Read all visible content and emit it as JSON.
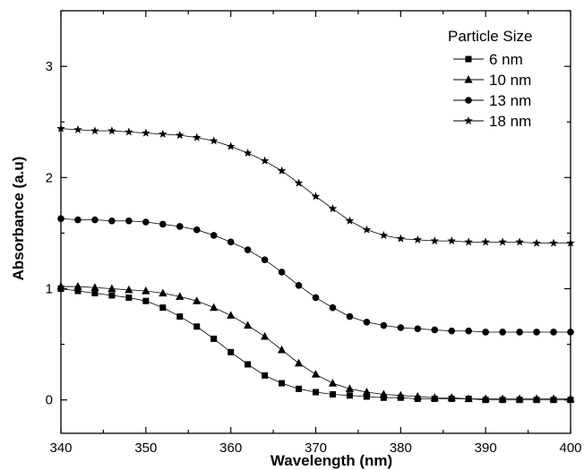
{
  "chart_data": {
    "type": "line",
    "title": "",
    "xlabel": "Wavelength (nm)",
    "ylabel": "Absorbance (a.u)",
    "xlim": [
      340,
      400
    ],
    "ylim": [
      -0.3,
      3.5
    ],
    "xticks": [
      340,
      350,
      360,
      370,
      380,
      390,
      400
    ],
    "yticks": [
      0,
      1,
      2,
      3
    ],
    "grid": false,
    "legend_title": "Particle Size",
    "legend_position": "top-right",
    "x": [
      340,
      342,
      344,
      346,
      348,
      350,
      352,
      354,
      356,
      358,
      360,
      362,
      364,
      366,
      368,
      370,
      372,
      374,
      376,
      378,
      380,
      382,
      384,
      386,
      388,
      390,
      392,
      394,
      396,
      398,
      400
    ],
    "series": [
      {
        "name": "6 nm",
        "marker": "square",
        "values": [
          1.0,
          0.98,
          0.96,
          0.94,
          0.92,
          0.89,
          0.83,
          0.75,
          0.66,
          0.55,
          0.43,
          0.32,
          0.22,
          0.15,
          0.1,
          0.07,
          0.05,
          0.04,
          0.03,
          0.02,
          0.02,
          0.01,
          0.01,
          0.01,
          0.01,
          0.0,
          0.0,
          0.0,
          0.0,
          0.0,
          0.0
        ]
      },
      {
        "name": "10 nm",
        "marker": "triangle",
        "values": [
          1.02,
          1.02,
          1.01,
          1.0,
          0.99,
          0.98,
          0.96,
          0.93,
          0.89,
          0.83,
          0.76,
          0.67,
          0.57,
          0.45,
          0.33,
          0.23,
          0.15,
          0.1,
          0.07,
          0.05,
          0.04,
          0.03,
          0.02,
          0.02,
          0.01,
          0.01,
          0.01,
          0.01,
          0.01,
          0.01,
          0.01
        ]
      },
      {
        "name": "13 nm",
        "marker": "circle",
        "values": [
          1.63,
          1.62,
          1.62,
          1.61,
          1.61,
          1.6,
          1.58,
          1.56,
          1.53,
          1.48,
          1.42,
          1.35,
          1.26,
          1.15,
          1.03,
          0.92,
          0.83,
          0.75,
          0.7,
          0.67,
          0.65,
          0.64,
          0.63,
          0.62,
          0.62,
          0.61,
          0.61,
          0.61,
          0.61,
          0.61,
          0.61
        ]
      },
      {
        "name": "18 nm",
        "marker": "star",
        "values": [
          2.44,
          2.43,
          2.42,
          2.42,
          2.41,
          2.4,
          2.39,
          2.38,
          2.36,
          2.33,
          2.28,
          2.22,
          2.15,
          2.06,
          1.95,
          1.83,
          1.72,
          1.61,
          1.53,
          1.48,
          1.45,
          1.44,
          1.43,
          1.43,
          1.42,
          1.42,
          1.42,
          1.42,
          1.41,
          1.41,
          1.41
        ]
      }
    ]
  }
}
